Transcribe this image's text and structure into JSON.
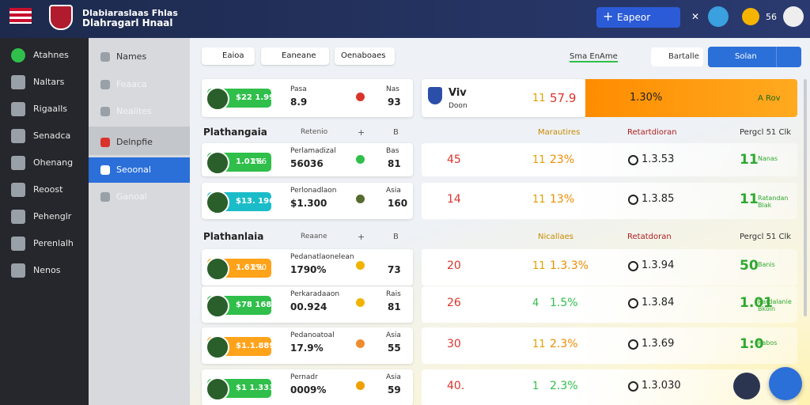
{
  "header": {
    "title": "Dlabiaraslaas Fhlas",
    "subtitle": "Dlahragarl Hnaal",
    "button": "Eapeor",
    "badge": "56"
  },
  "sidebar": [
    "Atahnes",
    "Naltars",
    "Rigaalls",
    "Senadca",
    "Ohenang",
    "Reoost",
    "Pehenglr",
    "Perenlalh",
    "Nenos"
  ],
  "subnav": [
    "Names",
    "Feaaca",
    "Nealites",
    "Delnpfie",
    "Seoonal",
    "Ganoal"
  ],
  "toolbar": {
    "tabs": [
      "Eaioa",
      "Eaneane",
      "Oenaboaes"
    ],
    "status": "Sma EnAme",
    "filter": "Bartalle",
    "primary": "Solan"
  },
  "featured": {
    "badge": "$22 1.99",
    "label": "Pasa",
    "value": "8.9",
    "small": "Nas",
    "number": "93",
    "name": "Viv",
    "sub": "Doon",
    "arrow": "11",
    "score": "57.9",
    "rate": "1.30%",
    "tag": "A Rov"
  },
  "sections": [
    {
      "title": "Plathangaia",
      "col1": "Retenio",
      "col2": "+",
      "col3": "B",
      "right": [
        "Marautires",
        "Retartdioran",
        "Pergcl 51 Clk"
      ],
      "rows": [
        {
          "badge": "1.01%",
          "count": "186",
          "label": "Perlamadizal",
          "value": "56036",
          "small": "Bas",
          "number": "81",
          "score": "45",
          "arrow": "11",
          "pct": "23%",
          "odds": "1.3.53",
          "big": "11",
          "note": "Nanas"
        },
        {
          "badge": "$13. 196",
          "label": "Perlonadlaon",
          "value": "$1.300",
          "small": "Asia",
          "number": "160",
          "score": "14",
          "arrow": "11",
          "pct": "13%",
          "odds": "1.3.85",
          "big": "11",
          "note": "Ratandan Blak"
        }
      ]
    },
    {
      "title": "Plathanlaia",
      "col1": "Reaane",
      "col2": "+",
      "col3": "B",
      "right": [
        "Nicallaes",
        "Retatdoran",
        "Pergcl 51 Clk"
      ],
      "rows": [
        {
          "badge": "1.61%",
          "count": "190",
          "label": "Pedanatlaonelean",
          "value": "1790%",
          "small": "",
          "number": "73",
          "score": "20",
          "arrow": "11",
          "pct": "1.3.3%",
          "odds": "1.3.94",
          "big": "50",
          "note": "Banis"
        },
        {
          "badge": "$78 168",
          "label": "Perkaradaaon",
          "value": "00.924",
          "small": "Rais",
          "number": "81",
          "score": "26",
          "arrow": "4",
          "pct": "1.5%",
          "odds": "1.3.84",
          "big": "1.01",
          "note": "Rardalanie Bkoin"
        },
        {
          "badge": "$1.1.889",
          "label": "Pedanoatoal",
          "value": "17.9%",
          "small": "Asia",
          "number": "55",
          "score": "30",
          "arrow": "11",
          "pct": "2.3%",
          "odds": "1.3.69",
          "big": "1:0",
          "note": "Rabos"
        },
        {
          "badge": "$1 1.333",
          "label": "Pernadr",
          "value": "0009%",
          "small": "Asia",
          "number": "59",
          "score": "40.",
          "arrow": "1",
          "pct": "2.3%",
          "odds": "1.3.030",
          "big": "",
          "note": ""
        }
      ]
    }
  ]
}
